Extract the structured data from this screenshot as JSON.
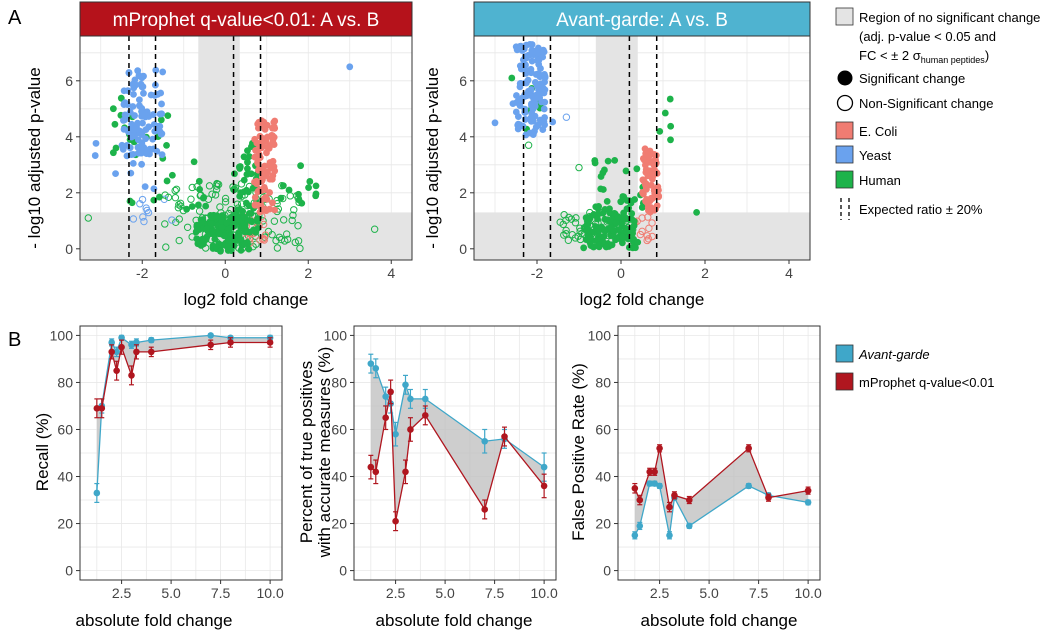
{
  "panel_labels": {
    "a": "A",
    "b": "B"
  },
  "colors": {
    "ecoli": "#F07C72",
    "yeast": "#6AA2EE",
    "human": "#1DB34A",
    "mprophet_strip": "#B5121B",
    "avant_strip": "#4FB3D0",
    "avant_line": "#3FA7C9",
    "mprophet_line": "#B0161F",
    "shade": "#E4E4E4",
    "grid": "#E8E8E8"
  },
  "legend_a": {
    "region_line1": "Region of no significant change",
    "region_line2": "(adj. p-value < 0.05 and",
    "region_line3_prefix": "FC < ± 2 σ",
    "region_line3_sub": "human peptides",
    "region_line3_suffix": ")",
    "significant": "Significant change",
    "nonsignificant": "Non-Significant change",
    "ecoli": "E. Coli",
    "yeast": "Yeast",
    "human": "Human",
    "expected": "Expected ratio ± 20%"
  },
  "legend_b": {
    "avant": "Avant-garde",
    "mprophet": "mProphet q-value<0.01"
  },
  "chart_data": [
    {
      "id": "volcano_mprophet",
      "type": "scatter",
      "title": "mProphet q-value<0.01: A vs. B",
      "xlabel": "log2 fold change",
      "ylabel": "- log10 adjusted p-value",
      "xlim": [
        -3.5,
        4.5
      ],
      "ylim": [
        -0.4,
        7.6
      ],
      "xticks": [
        -2,
        0,
        2,
        4
      ],
      "yticks": [
        0,
        2,
        4,
        6
      ],
      "shaded_band_x": [
        -0.65,
        0.35
      ],
      "shaded_band_y_below": 1.3,
      "expected_ratio_lines": [
        -2.32,
        -1.68,
        0.2,
        0.85
      ],
      "clusters": [
        {
          "species": "yeast",
          "x": [
            -2.5,
            -1.5
          ],
          "y": [
            3.3,
            6.4
          ],
          "n": 95,
          "sig": true
        },
        {
          "species": "yeast",
          "x": [
            -3.2,
            -1.6
          ],
          "y": [
            2.0,
            4.5
          ],
          "n": 14,
          "sig": true
        },
        {
          "species": "yeast",
          "x": [
            -2.4,
            -1.2
          ],
          "y": [
            0.9,
            1.9
          ],
          "n": 10,
          "sig": false
        },
        {
          "species": "ecoli",
          "x": [
            0.7,
            1.2
          ],
          "y": [
            1.3,
            4.6
          ],
          "n": 90,
          "sig": true
        },
        {
          "species": "ecoli",
          "x": [
            0.4,
            1.0
          ],
          "y": [
            0.1,
            1.3
          ],
          "n": 18,
          "sig": false
        },
        {
          "species": "human",
          "x": [
            -3.0,
            -1.3
          ],
          "y": [
            1.4,
            5.4
          ],
          "n": 26,
          "sig": true
        },
        {
          "species": "human",
          "x": [
            -1.3,
            -0.3
          ],
          "y": [
            1.4,
            3.5
          ],
          "n": 10,
          "sig": true
        },
        {
          "species": "human",
          "x": [
            0.2,
            0.8
          ],
          "y": [
            0.5,
            3.8
          ],
          "n": 55,
          "sig": true
        },
        {
          "species": "human",
          "x": [
            1.0,
            2.2
          ],
          "y": [
            1.5,
            3.0
          ],
          "n": 12,
          "sig": true
        },
        {
          "species": "human",
          "x": [
            -0.7,
            0.6
          ],
          "y": [
            -0.1,
            1.2
          ],
          "n": 140,
          "sig": true
        },
        {
          "species": "human",
          "x": [
            -1.5,
            1.8
          ],
          "y": [
            0.0,
            2.4
          ],
          "n": 120,
          "sig": false
        }
      ],
      "extra_points": [
        {
          "species": "yeast",
          "x": 3.0,
          "y": 6.5,
          "sig": true
        },
        {
          "species": "human",
          "x": 3.6,
          "y": 0.7,
          "sig": false
        },
        {
          "species": "human",
          "x": -3.3,
          "y": 1.1,
          "sig": false
        }
      ]
    },
    {
      "id": "volcano_avant",
      "type": "scatter",
      "title": "Avant-garde: A vs. B",
      "xlabel": "log2 fold change",
      "ylabel": "- log10 adjusted p-value",
      "xlim": [
        -3.5,
        4.5
      ],
      "ylim": [
        -0.4,
        7.6
      ],
      "xticks": [
        -2,
        0,
        2,
        4
      ],
      "yticks": [
        0,
        2,
        4,
        6
      ],
      "shaded_band_x": [
        -0.6,
        0.4
      ],
      "shaded_band_y_below": 1.3,
      "expected_ratio_lines": [
        -2.32,
        -1.68,
        0.2,
        0.85
      ],
      "clusters": [
        {
          "species": "yeast",
          "x": [
            -2.5,
            -1.8
          ],
          "y": [
            4.0,
            7.3
          ],
          "n": 120,
          "sig": true
        },
        {
          "species": "yeast",
          "x": [
            -2.6,
            -1.6
          ],
          "y": [
            4.4,
            5.5
          ],
          "n": 10,
          "sig": true
        },
        {
          "species": "ecoli",
          "x": [
            0.5,
            0.9
          ],
          "y": [
            1.0,
            3.6
          ],
          "n": 70,
          "sig": true
        },
        {
          "species": "ecoli",
          "x": [
            0.3,
            0.8
          ],
          "y": [
            0.2,
            1.2
          ],
          "n": 12,
          "sig": false
        },
        {
          "species": "human",
          "x": [
            -0.7,
            0.6
          ],
          "y": [
            1.4,
            3.2
          ],
          "n": 30,
          "sig": true
        },
        {
          "species": "human",
          "x": [
            -0.9,
            0.4
          ],
          "y": [
            0.0,
            1.3
          ],
          "n": 110,
          "sig": true
        },
        {
          "species": "human",
          "x": [
            -1.5,
            0.3
          ],
          "y": [
            0.2,
            1.3
          ],
          "n": 60,
          "sig": false
        },
        {
          "species": "human",
          "x": [
            -2.3,
            -1.9
          ],
          "y": [
            4.2,
            6.0
          ],
          "n": 6,
          "sig": true
        },
        {
          "species": "human",
          "x": [
            0.9,
            1.2
          ],
          "y": [
            2.8,
            5.4
          ],
          "n": 5,
          "sig": true
        }
      ],
      "extra_points": [
        {
          "species": "yeast",
          "x": -3.0,
          "y": 4.5,
          "sig": true
        },
        {
          "species": "yeast",
          "x": -1.3,
          "y": 4.7,
          "sig": false
        },
        {
          "species": "human",
          "x": -2.6,
          "y": 6.1,
          "sig": true
        },
        {
          "species": "human",
          "x": -2.2,
          "y": 3.7,
          "sig": false
        },
        {
          "species": "human",
          "x": 1.8,
          "y": 1.3,
          "sig": true
        },
        {
          "species": "human",
          "x": -1.0,
          "y": 2.9,
          "sig": false
        }
      ]
    },
    {
      "id": "recall",
      "type": "line",
      "xlabel": "absolute fold change",
      "ylabel": "Recall (%)",
      "xlim": [
        0.4,
        10.6
      ],
      "ylim": [
        -4,
        104
      ],
      "xticks": [
        2.5,
        5.0,
        7.5,
        10.0
      ],
      "yticks": [
        0,
        20,
        40,
        60,
        80,
        100
      ],
      "x": [
        1.25,
        1.5,
        2,
        2.25,
        2.5,
        3,
        3.25,
        4,
        7,
        8,
        10
      ],
      "series": [
        {
          "name": "Avant-garde",
          "values": [
            33,
            70,
            97,
            93,
            99,
            96,
            97,
            98,
            100,
            99,
            99
          ],
          "err": [
            4,
            3,
            1.5,
            2,
            1,
            1.5,
            1.5,
            1,
            0.5,
            0.5,
            1
          ]
        },
        {
          "name": "mProphet q-value<0.01",
          "values": [
            69,
            69,
            93,
            85,
            95,
            83,
            93,
            93,
            96,
            97,
            97
          ],
          "err": [
            4,
            4,
            3,
            4,
            3,
            4,
            3,
            2,
            2,
            2,
            2
          ]
        }
      ]
    },
    {
      "id": "accurate",
      "type": "line",
      "xlabel": "absolute fold change",
      "ylabel": "Percent of true positives with accurate measures (%)",
      "ylabel_line1": "Percent of true positives",
      "ylabel_line2": "with accurate measures (%)",
      "xlim": [
        0.4,
        10.6
      ],
      "ylim": [
        -4,
        104
      ],
      "xticks": [
        2.5,
        5.0,
        7.5,
        10.0
      ],
      "yticks": [
        0,
        20,
        40,
        60,
        80,
        100
      ],
      "x": [
        1.25,
        1.5,
        2,
        2.25,
        2.5,
        3,
        3.25,
        4,
        7,
        8,
        10
      ],
      "series": [
        {
          "name": "Avant-garde",
          "values": [
            88,
            86,
            74,
            71,
            58,
            79,
            73,
            73,
            55,
            56,
            44
          ],
          "err": [
            4,
            4,
            4,
            4,
            5,
            4,
            4,
            4,
            5,
            4,
            6
          ]
        },
        {
          "name": "mProphet q-value<0.01",
          "values": [
            44,
            42,
            65,
            76,
            21,
            42,
            60,
            66,
            26,
            57,
            36
          ],
          "err": [
            5,
            5,
            5,
            5,
            4,
            5,
            5,
            4,
            4,
            4,
            5
          ]
        }
      ]
    },
    {
      "id": "fpr",
      "type": "line",
      "xlabel": "absolute fold change",
      "ylabel": "False Positive Rate (%)",
      "xlim": [
        0.4,
        10.6
      ],
      "ylim": [
        -4,
        104
      ],
      "xticks": [
        2.5,
        5.0,
        7.5,
        10.0
      ],
      "yticks": [
        0,
        20,
        40,
        60,
        80,
        100
      ],
      "x": [
        1.25,
        1.5,
        2,
        2.25,
        2.5,
        3,
        3.25,
        4,
        7,
        8,
        10
      ],
      "series": [
        {
          "name": "Avant-garde",
          "values": [
            15,
            19,
            37,
            37,
            36,
            15,
            31,
            19,
            36,
            32,
            29
          ],
          "err": [
            1.5,
            1.5,
            1,
            1,
            1,
            1.5,
            1,
            1,
            1,
            1,
            1
          ]
        },
        {
          "name": "mProphet q-value<0.01",
          "values": [
            35,
            30,
            42,
            42,
            52,
            27,
            32,
            30,
            52,
            31,
            34
          ],
          "err": [
            2,
            2,
            1.5,
            1.5,
            1.5,
            2,
            1.5,
            1.5,
            1.5,
            1.5,
            1.5
          ]
        }
      ]
    }
  ]
}
